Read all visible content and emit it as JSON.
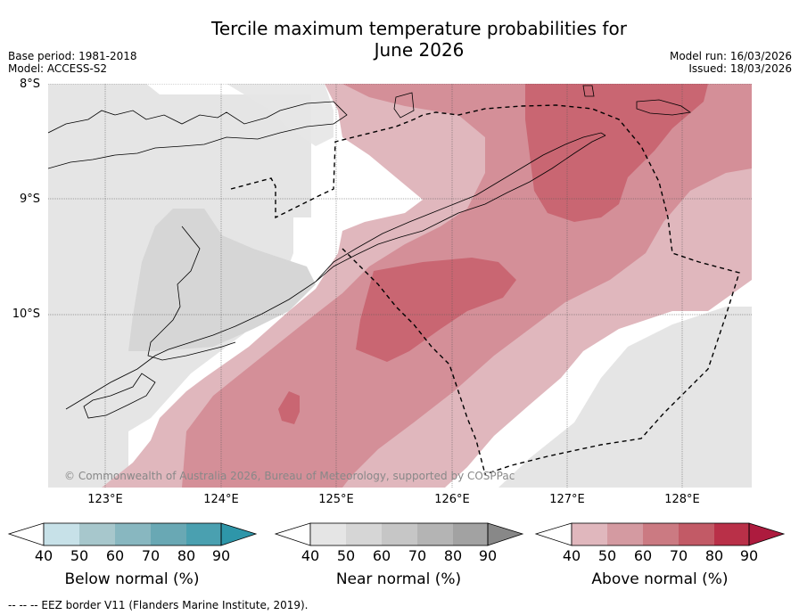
{
  "title_line1": "Tercile maximum temperature probabilities for",
  "title_line2": "June 2026",
  "meta_left": {
    "base_period": "Base period: 1981-2018",
    "model": "Model: ACCESS-S2"
  },
  "meta_right": {
    "model_run": "Model run: 16/03/2026",
    "issued": "Issued: 18/03/2026"
  },
  "map": {
    "lat_labels": [
      "8°S",
      "9°S",
      "10°S"
    ],
    "lon_labels": [
      "123°E",
      "124°E",
      "125°E",
      "126°E",
      "127°E",
      "128°E"
    ],
    "copyright": "© Commonwealth of Australia 2026, Bureau of Meteorology, supported by COSPPac",
    "colors": {
      "near_normal_40": "#e5e5e5",
      "near_normal_50": "#d6d6d6",
      "above_40": "#e0b7bd",
      "above_50": "#d48f98",
      "above_60": "#c96672",
      "ocean_background": "#ffffff"
    }
  },
  "colorbars": [
    {
      "label": "Below normal (%)",
      "ticks": [
        "40",
        "50",
        "60",
        "70",
        "80",
        "90"
      ],
      "colors": [
        "#c7e1e8",
        "#a7c7cc",
        "#88b7c0",
        "#69a8b4",
        "#4aa0b0",
        "#2e96a9"
      ]
    },
    {
      "label": "Near normal (%)",
      "ticks": [
        "40",
        "50",
        "60",
        "70",
        "80",
        "90"
      ],
      "colors": [
        "#e5e5e5",
        "#d6d6d6",
        "#c6c6c6",
        "#b4b4b4",
        "#a2a2a2",
        "#888888"
      ]
    },
    {
      "label": "Above normal (%)",
      "ticks": [
        "40",
        "50",
        "60",
        "70",
        "80",
        "90"
      ],
      "colors": [
        "#e0b7bd",
        "#d49aa1",
        "#cb7a82",
        "#c25a66",
        "#b93048",
        "#ad1b3e"
      ]
    }
  ],
  "footer": "--  --  -- EEZ border V11 (Flanders Marine Institute, 2019)."
}
